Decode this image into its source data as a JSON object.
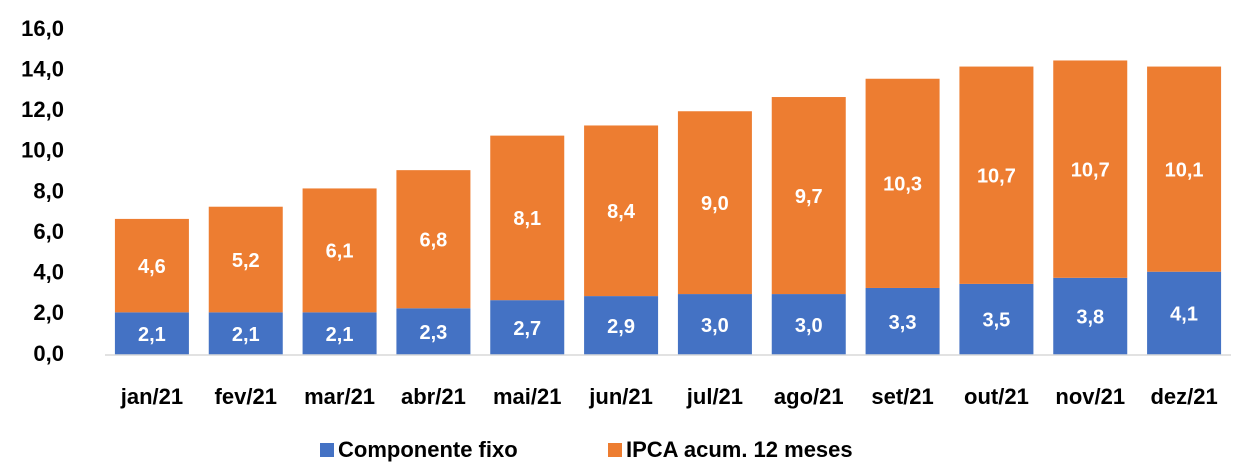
{
  "chart_data": {
    "type": "stacked_bar",
    "categories": [
      "jan/21",
      "fev/21",
      "mar/21",
      "abr/21",
      "mai/21",
      "jun/21",
      "jul/21",
      "ago/21",
      "set/21",
      "out/21",
      "nov/21",
      "dez/21"
    ],
    "series": [
      {
        "name": "Componente fixo",
        "color": "#4472c4",
        "values": [
          2.1,
          2.1,
          2.1,
          2.3,
          2.7,
          2.9,
          3.0,
          3.0,
          3.3,
          3.5,
          3.8,
          4.1
        ],
        "value_labels": [
          "2,1",
          "2,1",
          "2,1",
          "2,3",
          "2,7",
          "2,9",
          "3,0",
          "3,0",
          "3,3",
          "3,5",
          "3,8",
          "4,1"
        ]
      },
      {
        "name": "IPCA acum. 12 meses",
        "color": "#ed7d31",
        "values": [
          4.6,
          5.2,
          6.1,
          6.8,
          8.1,
          8.4,
          9.0,
          9.7,
          10.3,
          10.7,
          10.7,
          10.1
        ],
        "value_labels": [
          "4,6",
          "5,2",
          "6,1",
          "6,8",
          "8,1",
          "8,4",
          "9,0",
          "9,7",
          "10,3",
          "10,7",
          "10,7",
          "10,1"
        ]
      }
    ],
    "ylim": [
      0,
      16
    ],
    "yticks": [
      {
        "value": 0,
        "label": "0,0"
      },
      {
        "value": 2,
        "label": "2,0"
      },
      {
        "value": 4,
        "label": "4,0"
      },
      {
        "value": 6,
        "label": "6,0"
      },
      {
        "value": 8,
        "label": "8,0"
      },
      {
        "value": 10,
        "label": "10,0"
      },
      {
        "value": 12,
        "label": "12,0"
      },
      {
        "value": 14,
        "label": "14,0"
      },
      {
        "value": 16,
        "label": "16,0"
      }
    ],
    "legend": "bottom"
  }
}
